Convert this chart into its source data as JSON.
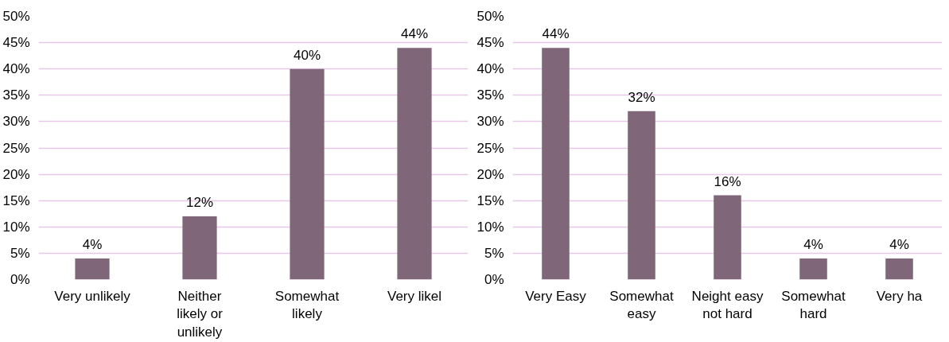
{
  "chart_data": [
    {
      "type": "bar",
      "categories": [
        "Very unlikely",
        "Neither likely or unlikely",
        "Somewhat likely",
        "Very likel"
      ],
      "values": [
        4,
        12,
        40,
        44
      ],
      "value_labels": [
        "4%",
        "12%",
        "40%",
        "44%"
      ],
      "color": "#7f6679",
      "ylim": [
        0,
        50
      ],
      "yticks": [
        {
          "value": 0,
          "label": "0%"
        },
        {
          "value": 5,
          "label": "5%"
        },
        {
          "value": 10,
          "label": "10%"
        },
        {
          "value": 15,
          "label": "15%"
        },
        {
          "value": 20,
          "label": "20%"
        },
        {
          "value": 25,
          "label": "25%"
        },
        {
          "value": 30,
          "label": "30%"
        },
        {
          "value": 35,
          "label": "35%"
        },
        {
          "value": 40,
          "label": "40%"
        },
        {
          "value": 45,
          "label": "45%"
        },
        {
          "value": 50,
          "label": "50%"
        }
      ],
      "grid": "y"
    },
    {
      "type": "bar",
      "categories": [
        "Very Easy",
        "Somewhat easy",
        "Neight easy not hard",
        "Somewhat hard",
        "Very ha"
      ],
      "values": [
        44,
        32,
        16,
        4,
        4
      ],
      "value_labels": [
        "44%",
        "32%",
        "16%",
        "4%",
        "4%"
      ],
      "color": "#7f6679",
      "ylim": [
        0,
        50
      ],
      "yticks": [
        {
          "value": 0,
          "label": "0%"
        },
        {
          "value": 5,
          "label": "5%"
        },
        {
          "value": 10,
          "label": "10%"
        },
        {
          "value": 15,
          "label": "15%"
        },
        {
          "value": 20,
          "label": "20%"
        },
        {
          "value": 25,
          "label": "25%"
        },
        {
          "value": 30,
          "label": "30%"
        },
        {
          "value": 35,
          "label": "35%"
        },
        {
          "value": 40,
          "label": "40%"
        },
        {
          "value": 45,
          "label": "45%"
        },
        {
          "value": 50,
          "label": "50%"
        }
      ],
      "grid": "y"
    }
  ]
}
